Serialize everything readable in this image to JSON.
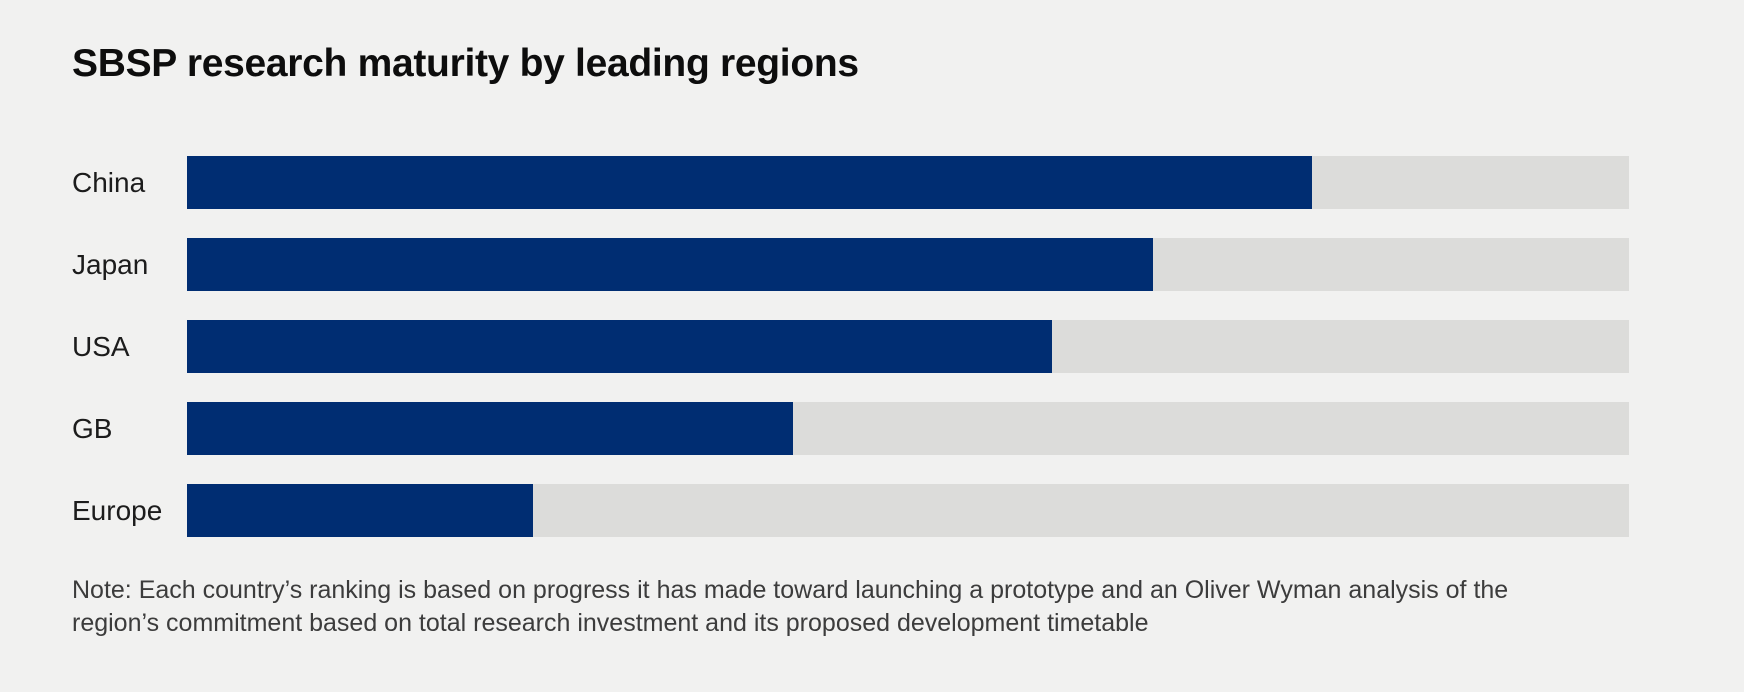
{
  "page": {
    "background": "#f1f1f0"
  },
  "chart_data": {
    "type": "bar",
    "orientation": "horizontal",
    "title": "SBSP research maturity by leading regions",
    "categories": [
      "China",
      "Japan",
      "USA",
      "GB",
      "Europe"
    ],
    "values": [
      78,
      67,
      60,
      42,
      24
    ],
    "xlim": [
      0,
      100
    ],
    "axis_shown": false,
    "grid": false,
    "legend": false,
    "value_labels_shown": false,
    "track_style": "full-width gray background track behind each bar",
    "note": "Note: Each country’s ranking is based on progress it has made toward launching a prototype and an Oliver Wyman analysis of the region’s commitment based on total research investment and its proposed development timetable",
    "colors": {
      "bar_fill": "#002d72",
      "bar_track": "#dcdcda",
      "background": "#f1f1f0",
      "title_text": "#0d0d0d",
      "label_text": "#1c1c1c",
      "note_text": "#3c3c3c"
    }
  }
}
